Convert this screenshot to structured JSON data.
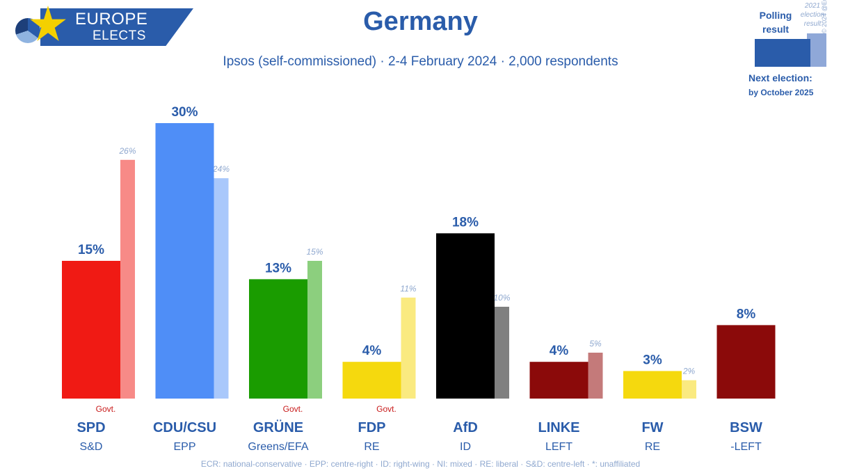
{
  "brand": {
    "line1": "EUROPE",
    "line2": "ELECTS"
  },
  "legend": {
    "polling_label": "Polling result",
    "previous_label": "2021 election result",
    "credit": "© 2024 @EuropeElects",
    "next_election_label": "Next election:",
    "next_election_date": "by October 2025",
    "colors": {
      "polling": "#2a5caa",
      "previous": "#8fa8d8"
    }
  },
  "footnote": "ECR: national-conservative · EPP: centre-right · ID: right-wing · NI: mixed · RE: liberal · S&D: centre-left · *: unaffiliated",
  "chart_data": {
    "type": "bar",
    "title": "Germany",
    "subtitle": "Ipsos (self-commissioned) · 2-4 February 2024 · 2,000 respondents",
    "ylim": [
      0,
      30
    ],
    "grid": false,
    "categories": [
      "SPD",
      "CDU/CSU",
      "GRÜNE",
      "FDP",
      "AfD",
      "LINKE",
      "FW",
      "BSW"
    ],
    "groups": [
      "S&D",
      "EPP",
      "Greens/EFA",
      "RE",
      "ID",
      "LEFT",
      "RE",
      "-LEFT"
    ],
    "government": [
      "Govt.",
      "",
      "Govt.",
      "Govt.",
      "",
      "",
      "",
      ""
    ],
    "series": [
      {
        "name": "Polling result",
        "values": [
          15,
          30,
          13,
          4,
          18,
          4,
          3,
          8
        ],
        "colors": [
          "#f01a14",
          "#4f8ef7",
          "#1a9c00",
          "#f5d90e",
          "#000000",
          "#8b0a0a",
          "#f5d90e",
          "#8b0a0a"
        ]
      },
      {
        "name": "2021 election result",
        "values": [
          26,
          24,
          15,
          11,
          10,
          5,
          2,
          null
        ],
        "colors": [
          "#f78a87",
          "#a9c8fb",
          "#8ccf7e",
          "#faea80",
          "#808080",
          "#c47a7a",
          "#faea80",
          null
        ]
      }
    ],
    "value_labels": {
      "polling": [
        "15%",
        "30%",
        "13%",
        "4%",
        "18%",
        "4%",
        "3%",
        "8%"
      ],
      "previous": [
        "26%",
        "24%",
        "15%",
        "11%",
        "10%",
        "5%",
        "2%",
        ""
      ]
    }
  }
}
